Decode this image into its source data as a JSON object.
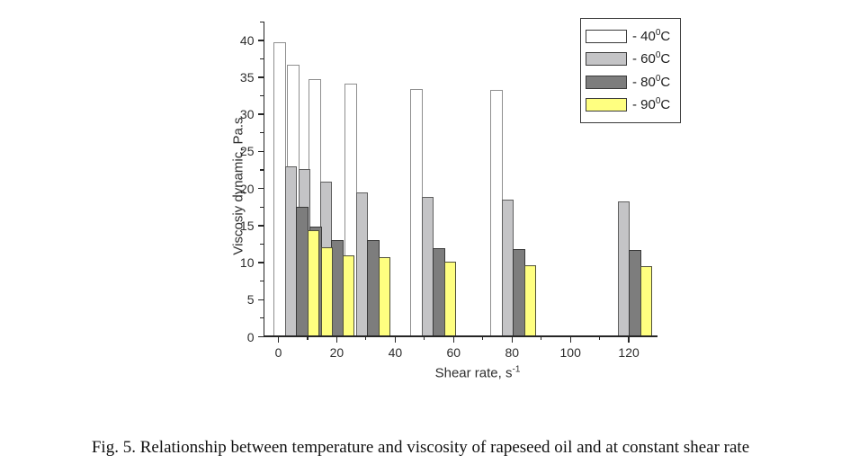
{
  "figure": {
    "caption": "Fig. 5. Relationship between temperature and viscosity of rapeseed oil and at constant shear rate"
  },
  "chart_data": {
    "type": "bar",
    "title": "",
    "xlabel": "Shear rate, s",
    "xlabel_sup": "-1",
    "ylabel": "Viscosiy dynamic, Pa.s",
    "xlim": [
      -5,
      130
    ],
    "ylim": [
      0,
      42.5
    ],
    "x_major_ticks": [
      0,
      20,
      40,
      60,
      80,
      100,
      120
    ],
    "x_minor_ticks": [
      10,
      30,
      50,
      70,
      90,
      110
    ],
    "y_major_ticks": [
      0,
      5,
      10,
      15,
      20,
      25,
      30,
      35,
      40
    ],
    "y_minor_ticks": [
      2.5,
      7.5,
      12.5,
      17.5,
      22.5,
      27.5,
      32.5,
      37.5,
      42.5
    ],
    "grid": false,
    "legend_position": "top-right",
    "group_shear_rates_estimated": [
      0.4,
      5.0,
      12.4,
      24.8,
      47.2,
      74.6,
      114.4
    ],
    "series": [
      {
        "name": "40C",
        "legend_base": "- 40",
        "legend_sup": "0",
        "legend_end": "C",
        "fill": "#ffffff",
        "border": "#8f8f8f",
        "values": [
          39.7,
          36.7,
          34.7,
          34.2,
          33.4,
          33.3,
          null
        ]
      },
      {
        "name": "60C",
        "legend_base": "- 60",
        "legend_sup": "0",
        "legend_end": "C",
        "fill": "#c4c4c6",
        "border": "#5f5f5f",
        "values": [
          23.0,
          22.6,
          20.9,
          19.5,
          18.9,
          18.5,
          18.3
        ]
      },
      {
        "name": "80C",
        "legend_base": "- 80",
        "legend_sup": "0",
        "legend_end": "C",
        "fill": "#7d7d7d",
        "border": "#383838",
        "values": [
          17.5,
          14.9,
          13.0,
          13.0,
          12.0,
          11.8,
          11.7
        ]
      },
      {
        "name": "90C",
        "legend_base": "- 90",
        "legend_sup": "0",
        "legend_end": "C",
        "fill": "#ffff80",
        "border": "#50503a",
        "values": [
          14.4,
          12.1,
          11.0,
          10.8,
          10.1,
          9.7,
          9.5
        ]
      }
    ]
  }
}
